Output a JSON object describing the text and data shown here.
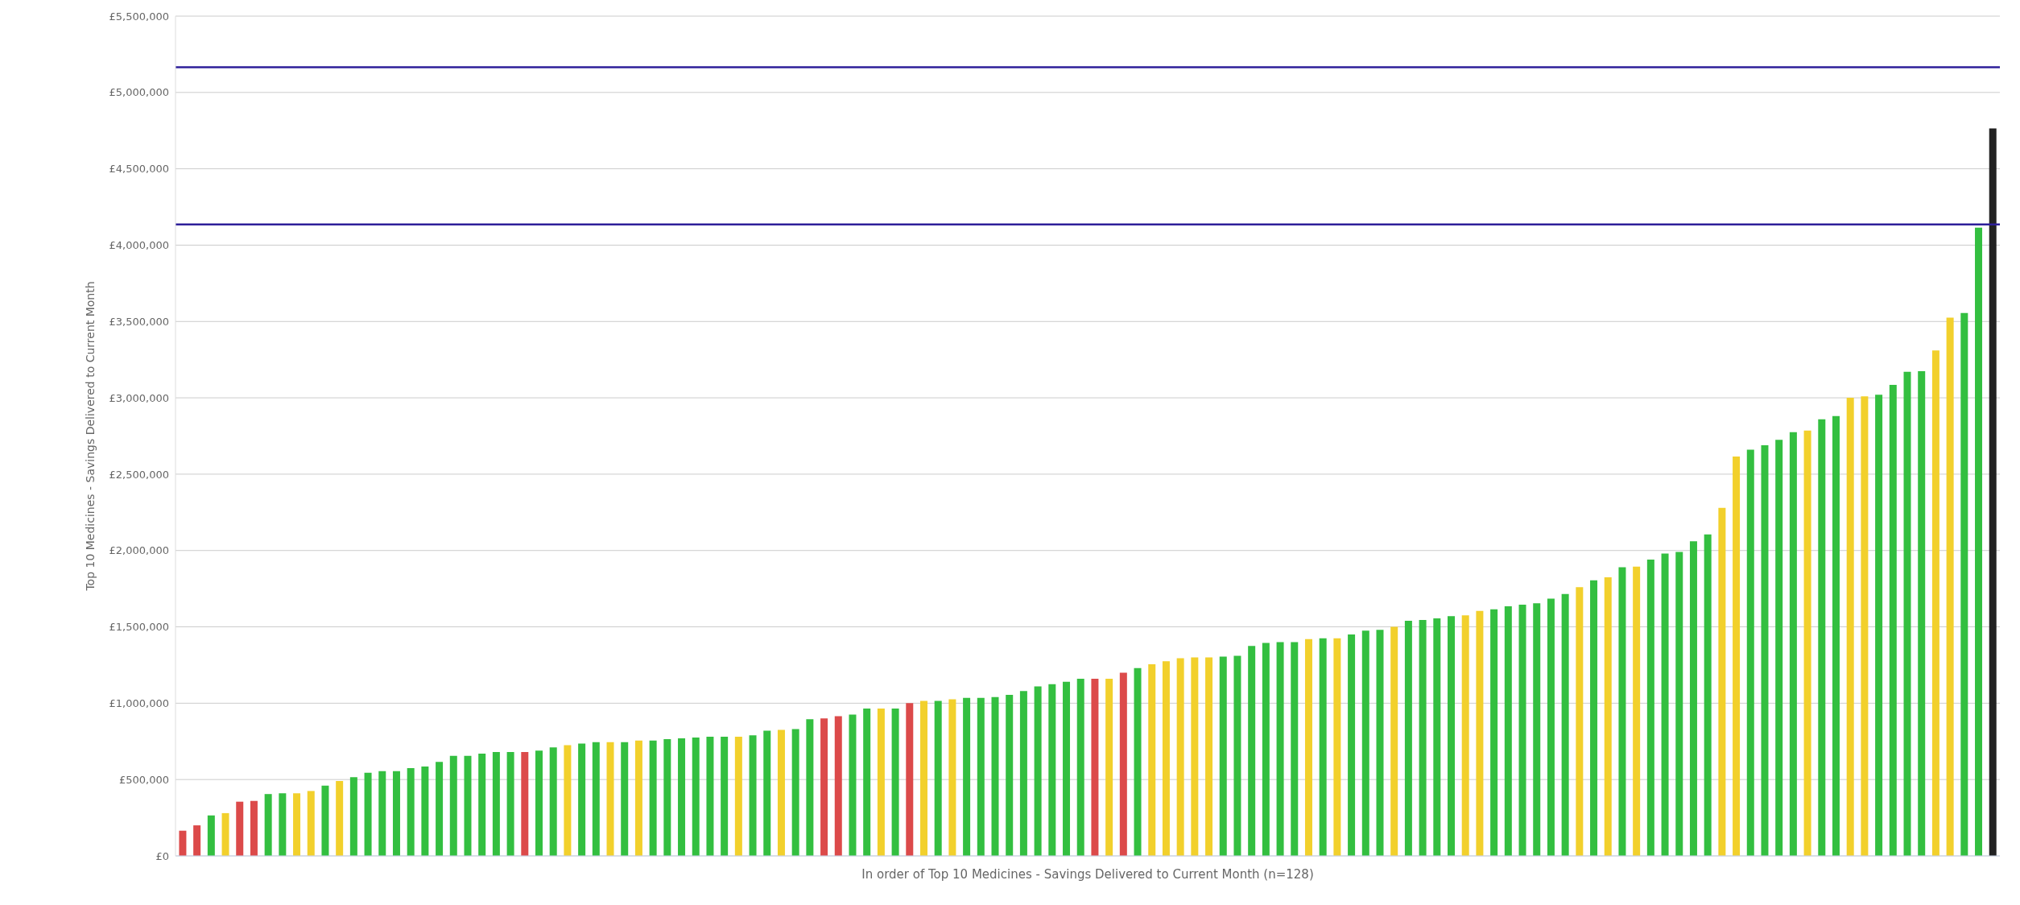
{
  "chart_data": {
    "type": "bar",
    "ylabel": "Top 10 Medicines - Savings Delivered to Current Month",
    "xlabel": "In order of Top 10 Medicines - Savings Delivered to Current Month (n=128)",
    "categories": [
      null,
      null,
      null,
      null,
      null,
      null,
      null,
      null,
      null,
      null,
      null,
      null,
      null,
      null,
      null,
      null,
      null,
      null,
      null,
      null,
      null,
      null,
      null,
      null,
      null,
      null,
      null,
      null,
      null,
      null,
      null,
      null,
      null,
      null,
      null,
      null,
      null,
      null,
      null,
      null,
      null,
      null,
      null,
      null,
      null,
      null,
      null,
      null,
      null,
      null,
      null,
      null,
      null,
      null,
      null,
      null,
      null,
      null,
      null,
      null,
      null,
      null,
      null,
      null,
      null,
      null,
      null,
      null,
      null,
      null,
      null,
      null,
      null,
      null,
      null,
      null,
      null,
      null,
      null,
      null,
      null,
      null,
      null,
      null,
      null,
      null,
      null,
      null,
      null,
      null,
      null,
      null,
      null,
      null,
      null,
      null,
      null,
      null,
      null,
      null,
      null,
      null,
      null,
      null,
      null,
      null,
      null,
      null,
      null,
      null,
      null,
      null,
      null,
      null,
      null,
      null,
      null,
      null,
      null,
      null,
      null,
      null,
      null,
      null,
      null,
      null,
      null,
      null
    ],
    "values": [
      165000,
      200000,
      265000,
      280000,
      355000,
      360000,
      405000,
      410000,
      410000,
      425000,
      460000,
      490000,
      515000,
      545000,
      555000,
      555000,
      575000,
      585000,
      615000,
      655000,
      655000,
      670000,
      680000,
      680000,
      680000,
      690000,
      710000,
      725000,
      735000,
      745000,
      745000,
      745000,
      755000,
      755000,
      765000,
      770000,
      775000,
      780000,
      780000,
      780000,
      790000,
      820000,
      825000,
      830000,
      895000,
      900000,
      915000,
      925000,
      965000,
      965000,
      965000,
      1000000,
      1015000,
      1015000,
      1025000,
      1035000,
      1035000,
      1040000,
      1055000,
      1080000,
      1110000,
      1125000,
      1140000,
      1160000,
      1160000,
      1160000,
      1200000,
      1230000,
      1255000,
      1275000,
      1295000,
      1300000,
      1300000,
      1305000,
      1310000,
      1375000,
      1395000,
      1400000,
      1400000,
      1420000,
      1425000,
      1425000,
      1450000,
      1475000,
      1480000,
      1500000,
      1540000,
      1545000,
      1555000,
      1570000,
      1575000,
      1605000,
      1615000,
      1635000,
      1645000,
      1655000,
      1685000,
      1715000,
      1760000,
      1805000,
      1825000,
      1890000,
      1895000,
      1940000,
      1980000,
      1990000,
      2060000,
      2105000,
      2280000,
      2615000,
      2660000,
      2690000,
      2725000,
      2775000,
      2785000,
      2860000,
      2880000,
      3000000,
      3010000,
      3020000,
      3085000,
      3170000,
      3175000,
      3310000,
      3525000,
      3555000,
      4115000,
      4765000
    ],
    "colors": [
      "#dc4a4a",
      "#dc4a4a",
      "#33bf40",
      "#f2d02c",
      "#dc4a4a",
      "#dc4a4a",
      "#33bf40",
      "#33bf40",
      "#f2d02c",
      "#f2d02c",
      "#33bf40",
      "#f2d02c",
      "#33bf40",
      "#33bf40",
      "#33bf40",
      "#33bf40",
      "#33bf40",
      "#33bf40",
      "#33bf40",
      "#33bf40",
      "#33bf40",
      "#33bf40",
      "#33bf40",
      "#33bf40",
      "#dc4a4a",
      "#33bf40",
      "#33bf40",
      "#f2d02c",
      "#33bf40",
      "#33bf40",
      "#f2d02c",
      "#33bf40",
      "#f2d02c",
      "#33bf40",
      "#33bf40",
      "#33bf40",
      "#33bf40",
      "#33bf40",
      "#33bf40",
      "#f2d02c",
      "#33bf40",
      "#33bf40",
      "#f2d02c",
      "#33bf40",
      "#33bf40",
      "#dc4a4a",
      "#dc4a4a",
      "#33bf40",
      "#33bf40",
      "#f2d02c",
      "#33bf40",
      "#dc4a4a",
      "#f2d02c",
      "#33bf40",
      "#f2d02c",
      "#33bf40",
      "#33bf40",
      "#33bf40",
      "#33bf40",
      "#33bf40",
      "#33bf40",
      "#33bf40",
      "#33bf40",
      "#33bf40",
      "#dc4a4a",
      "#f2d02c",
      "#dc4a4a",
      "#33bf40",
      "#f2d02c",
      "#f2d02c",
      "#f2d02c",
      "#f2d02c",
      "#f2d02c",
      "#33bf40",
      "#33bf40",
      "#33bf40",
      "#33bf40",
      "#33bf40",
      "#33bf40",
      "#f2d02c",
      "#33bf40",
      "#f2d02c",
      "#33bf40",
      "#33bf40",
      "#33bf40",
      "#f2d02c",
      "#33bf40",
      "#33bf40",
      "#33bf40",
      "#33bf40",
      "#f2d02c",
      "#f2d02c",
      "#33bf40",
      "#33bf40",
      "#33bf40",
      "#33bf40",
      "#33bf40",
      "#33bf40",
      "#f2d02c",
      "#33bf40",
      "#f2d02c",
      "#33bf40",
      "#f2d02c",
      "#33bf40",
      "#33bf40",
      "#33bf40",
      "#33bf40",
      "#33bf40",
      "#f2d02c",
      "#f2d02c",
      "#33bf40",
      "#33bf40",
      "#33bf40",
      "#33bf40",
      "#f2d02c",
      "#33bf40",
      "#33bf40",
      "#f2d02c",
      "#f2d02c",
      "#33bf40",
      "#33bf40",
      "#33bf40",
      "#33bf40",
      "#f2d02c",
      "#f2d02c",
      "#33bf40",
      "#33bf40",
      "#222222"
    ],
    "ylim": [
      0,
      5500000
    ],
    "yticks": [
      {
        "value": 0,
        "label": "£0"
      },
      {
        "value": 500000,
        "label": "£500,000"
      },
      {
        "value": 1000000,
        "label": "£1,000,000"
      },
      {
        "value": 1500000,
        "label": "£1,500,000"
      },
      {
        "value": 2000000,
        "label": "£2,000,000"
      },
      {
        "value": 2500000,
        "label": "£2,500,000"
      },
      {
        "value": 3000000,
        "label": "£3,000,000"
      },
      {
        "value": 3500000,
        "label": "£3,500,000"
      },
      {
        "value": 4000000,
        "label": "£4,000,000"
      },
      {
        "value": 4500000,
        "label": "£4,500,000"
      },
      {
        "value": 5000000,
        "label": "£5,000,000"
      },
      {
        "value": 5500000,
        "label": "£5,500,000"
      }
    ],
    "ref_lines": [
      {
        "axis": "y",
        "value": 5165000,
        "color": "#2e1f9a"
      },
      {
        "axis": "y",
        "value": 4135000,
        "color": "#2e1f9a"
      }
    ],
    "grid": "y"
  }
}
